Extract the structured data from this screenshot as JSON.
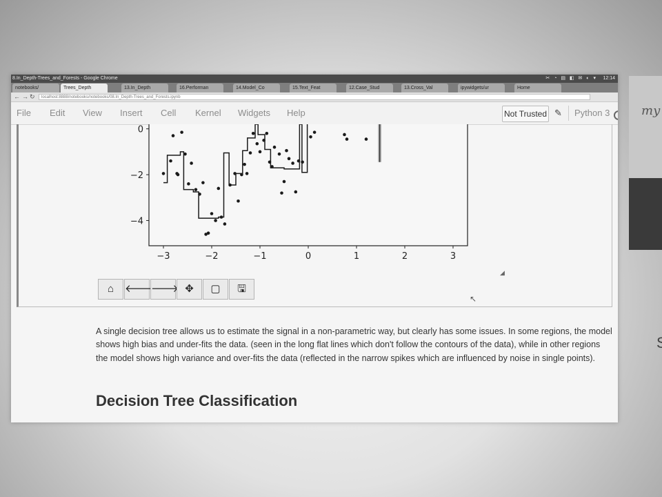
{
  "browser": {
    "window_title": "8.In_Depth-Trees_and_Forests - Google Chrome",
    "tabs": [
      "notebooks/",
      "Trees_Depth",
      "13.In_Depth",
      "16.Performan",
      "14.Model_Co",
      "15.Text_Feat",
      "12.Case_Stud",
      "13.Cross_Val",
      "ipywidgets/ur",
      "Home"
    ],
    "url": "localhost:8888/notebooks/notebooks/08.In_Depth-Trees_and_Forests.ipynb",
    "system_icons": "✂ ◔ ▤ ◧ ✉ ◐ ▾",
    "time": "12:14"
  },
  "jupyter": {
    "menu": [
      "File",
      "Edit",
      "View",
      "Insert",
      "Cell",
      "Kernel",
      "Widgets",
      "Help"
    ],
    "trust_label": "Not Trusted",
    "kernel_name": "Python 3"
  },
  "chart_data": {
    "type": "scatter",
    "x_ticks": [
      "−3",
      "−2",
      "−1",
      "0",
      "1",
      "2",
      "3"
    ],
    "y_ticks": [
      "0",
      "−2",
      "−4"
    ],
    "xlim": [
      -3.3,
      3.3
    ],
    "ylim": [
      -5.1,
      0.2
    ],
    "points": [
      [
        -3.0,
        -1.95
      ],
      [
        -2.85,
        -1.4
      ],
      [
        -2.8,
        -0.3
      ],
      [
        -2.72,
        -1.95
      ],
      [
        -2.7,
        -2.0
      ],
      [
        -2.62,
        -0.15
      ],
      [
        -2.55,
        -1.1
      ],
      [
        -2.48,
        -2.4
      ],
      [
        -2.42,
        -1.5
      ],
      [
        -2.33,
        -2.65
      ],
      [
        -2.25,
        -2.85
      ],
      [
        -2.18,
        -2.35
      ],
      [
        -2.12,
        -4.6
      ],
      [
        -2.07,
        -4.55
      ],
      [
        -2.0,
        -3.7
      ],
      [
        -1.92,
        -4.0
      ],
      [
        -1.86,
        -2.6
      ],
      [
        -1.8,
        -3.85
      ],
      [
        -1.73,
        -4.15
      ],
      [
        -1.62,
        -2.45
      ],
      [
        -1.52,
        -1.95
      ],
      [
        -1.45,
        -3.15
      ],
      [
        -1.38,
        -2.0
      ],
      [
        -1.32,
        -1.55
      ],
      [
        -1.27,
        -1.95
      ],
      [
        -1.2,
        -1.05
      ],
      [
        -1.14,
        -0.2
      ],
      [
        -1.06,
        -0.65
      ],
      [
        -1.0,
        -1.0
      ],
      [
        -0.92,
        -0.5
      ],
      [
        -0.86,
        -0.2
      ],
      [
        -0.8,
        -1.45
      ],
      [
        -0.75,
        -1.65
      ],
      [
        -0.7,
        -0.8
      ],
      [
        -0.6,
        -1.1
      ],
      [
        -0.55,
        -2.8
      ],
      [
        -0.5,
        -2.3
      ],
      [
        -0.45,
        -0.95
      ],
      [
        -0.4,
        -1.3
      ],
      [
        -0.32,
        -1.5
      ],
      [
        -0.26,
        -2.75
      ],
      [
        -0.2,
        -1.4
      ],
      [
        -0.12,
        -1.45
      ],
      [
        0.05,
        -0.35
      ],
      [
        0.13,
        -0.15
      ],
      [
        0.75,
        -0.25
      ],
      [
        0.8,
        -0.45
      ],
      [
        1.2,
        -0.45
      ]
    ],
    "step_fit": [
      [
        -3.0,
        -2.35
      ],
      [
        -2.92,
        -2.35
      ],
      [
        -2.92,
        -1.15
      ],
      [
        -2.65,
        -1.15
      ],
      [
        -2.65,
        -1.0
      ],
      [
        -2.58,
        -1.0
      ],
      [
        -2.58,
        -2.65
      ],
      [
        -2.38,
        -2.65
      ],
      [
        -2.38,
        -2.75
      ],
      [
        -2.27,
        -2.75
      ],
      [
        -2.27,
        -3.9
      ],
      [
        -1.86,
        -3.9
      ],
      [
        -1.86,
        -3.85
      ],
      [
        -1.75,
        -3.85
      ],
      [
        -1.75,
        -1.05
      ],
      [
        -1.64,
        -1.05
      ],
      [
        -1.64,
        -2.45
      ],
      [
        -1.5,
        -2.45
      ],
      [
        -1.5,
        -1.95
      ],
      [
        -1.36,
        -1.95
      ],
      [
        -1.36,
        -0.95
      ],
      [
        -1.26,
        -0.95
      ],
      [
        -1.26,
        -0.4
      ],
      [
        -1.1,
        -0.4
      ],
      [
        -1.1,
        0.2
      ],
      [
        -1.04,
        0.2
      ],
      [
        -1.04,
        -0.25
      ],
      [
        -0.9,
        -0.25
      ],
      [
        -0.9,
        -0.9
      ],
      [
        -0.78,
        -0.9
      ],
      [
        -0.78,
        -1.7
      ],
      [
        -0.5,
        -1.7
      ],
      [
        -0.5,
        -1.75
      ],
      [
        -0.18,
        -1.75
      ],
      [
        -0.18,
        0.2
      ],
      [
        -0.13,
        0.2
      ],
      [
        -0.13,
        -1.9
      ],
      [
        -0.02,
        -1.9
      ],
      [
        -0.02,
        0.2
      ]
    ],
    "spike": [
      [
        1.48,
        0.2
      ],
      [
        1.48,
        -1.45
      ]
    ]
  },
  "figure_toolbar": [
    {
      "name": "home-icon",
      "glyph": "⌂"
    },
    {
      "name": "back-arrow-icon",
      "glyph": "🡐"
    },
    {
      "name": "forward-arrow-icon",
      "glyph": "🡒"
    },
    {
      "name": "pan-icon",
      "glyph": "✥"
    },
    {
      "name": "zoom-rect-icon",
      "glyph": "▢"
    },
    {
      "name": "save-icon",
      "glyph": "🖫"
    }
  ],
  "markdown": {
    "paragraph": "A single decision tree allows us to estimate the signal in a non-parametric way, but clearly has some issues. In some regions, the model shows high bias and under-fits the data. (seen in the long flat lines which don't follow the contours of the data), while in other regions the model shows high variance and over-fits the data (reflected in the narrow spikes which are influenced by noise in single points).",
    "heading": "Decision Tree Classification"
  },
  "side_notes": {
    "scribble": "my",
    "bottom_char": "S"
  }
}
